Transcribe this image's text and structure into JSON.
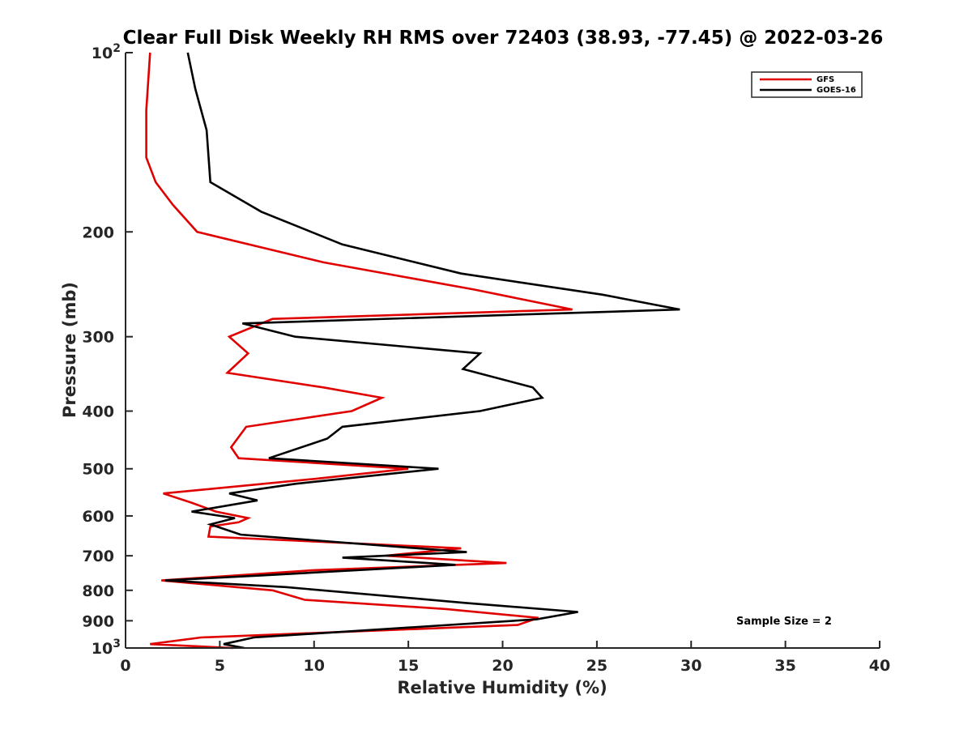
{
  "chart_data": {
    "type": "line",
    "title": "Clear Full Disk Weekly RH RMS over 72403 (38.93, -77.45) @ 2022-03-26",
    "xlabel": "Relative Humidity (%)",
    "ylabel": "Pressure (mb)",
    "xlim": [
      0,
      40
    ],
    "ylim": [
      100,
      1000
    ],
    "y_scale": "log",
    "y_reversed": true,
    "x_ticks": [
      "0",
      "5",
      "10",
      "15",
      "20",
      "25",
      "30",
      "35",
      "40"
    ],
    "y_ticks": [
      {
        "value": 100,
        "base": "10",
        "exp": "2"
      },
      {
        "value": 200,
        "label": "200"
      },
      {
        "value": 300,
        "label": "300"
      },
      {
        "value": 400,
        "label": "400"
      },
      {
        "value": 500,
        "label": "500"
      },
      {
        "value": 600,
        "label": "600"
      },
      {
        "value": 700,
        "label": "700"
      },
      {
        "value": 800,
        "label": "800"
      },
      {
        "value": 900,
        "label": "900"
      },
      {
        "value": 1000,
        "base": "10",
        "exp": "3"
      }
    ],
    "grid": false,
    "legend_position": "top-right",
    "annotation": "Sample Size = 2",
    "series": [
      {
        "name": "GFS",
        "color": "#e00000",
        "points": [
          [
            1.3,
            100
          ],
          [
            1.1,
            125
          ],
          [
            1.1,
            150
          ],
          [
            1.6,
            165
          ],
          [
            2.5,
            180
          ],
          [
            3.8,
            200
          ],
          [
            10.5,
            225
          ],
          [
            18.5,
            250
          ],
          [
            23.7,
            270
          ],
          [
            7.8,
            280
          ],
          [
            5.5,
            300
          ],
          [
            6.5,
            320
          ],
          [
            5.4,
            345
          ],
          [
            10.5,
            365
          ],
          [
            13.6,
            380
          ],
          [
            12.0,
            400
          ],
          [
            6.4,
            425
          ],
          [
            5.6,
            460
          ],
          [
            6.0,
            480
          ],
          [
            15.0,
            500
          ],
          [
            10.0,
            520
          ],
          [
            2.0,
            550
          ],
          [
            3.5,
            570
          ],
          [
            4.8,
            590
          ],
          [
            6.5,
            605
          ],
          [
            6.0,
            615
          ],
          [
            4.5,
            625
          ],
          [
            4.4,
            650
          ],
          [
            17.8,
            680
          ],
          [
            13.8,
            700
          ],
          [
            20.2,
            720
          ],
          [
            10.0,
            740
          ],
          [
            1.9,
            770
          ],
          [
            7.8,
            800
          ],
          [
            9.5,
            830
          ],
          [
            17.0,
            860
          ],
          [
            21.9,
            890
          ],
          [
            20.8,
            915
          ],
          [
            4.0,
            960
          ],
          [
            1.3,
            985
          ],
          [
            5.7,
            1000
          ]
        ]
      },
      {
        "name": "GOES-16",
        "color": "#000000",
        "points": [
          [
            3.3,
            100
          ],
          [
            3.7,
            115
          ],
          [
            4.3,
            135
          ],
          [
            4.5,
            165
          ],
          [
            7.2,
            185
          ],
          [
            11.5,
            210
          ],
          [
            17.8,
            235
          ],
          [
            25.3,
            255
          ],
          [
            29.4,
            270
          ],
          [
            6.2,
            285
          ],
          [
            9.0,
            300
          ],
          [
            18.8,
            320
          ],
          [
            17.9,
            340
          ],
          [
            21.6,
            365
          ],
          [
            22.1,
            380
          ],
          [
            18.8,
            400
          ],
          [
            11.5,
            425
          ],
          [
            10.7,
            445
          ],
          [
            7.6,
            480
          ],
          [
            16.6,
            500
          ],
          [
            9.0,
            530
          ],
          [
            5.5,
            550
          ],
          [
            7.0,
            565
          ],
          [
            3.5,
            590
          ],
          [
            5.8,
            605
          ],
          [
            4.5,
            620
          ],
          [
            6.1,
            645
          ],
          [
            18.1,
            690
          ],
          [
            11.5,
            705
          ],
          [
            17.5,
            725
          ],
          [
            7.3,
            755
          ],
          [
            2.1,
            770
          ],
          [
            8.5,
            790
          ],
          [
            18.0,
            840
          ],
          [
            24.0,
            870
          ],
          [
            21.8,
            895
          ],
          [
            6.8,
            960
          ],
          [
            5.2,
            985
          ],
          [
            6.3,
            1000
          ]
        ]
      }
    ]
  }
}
